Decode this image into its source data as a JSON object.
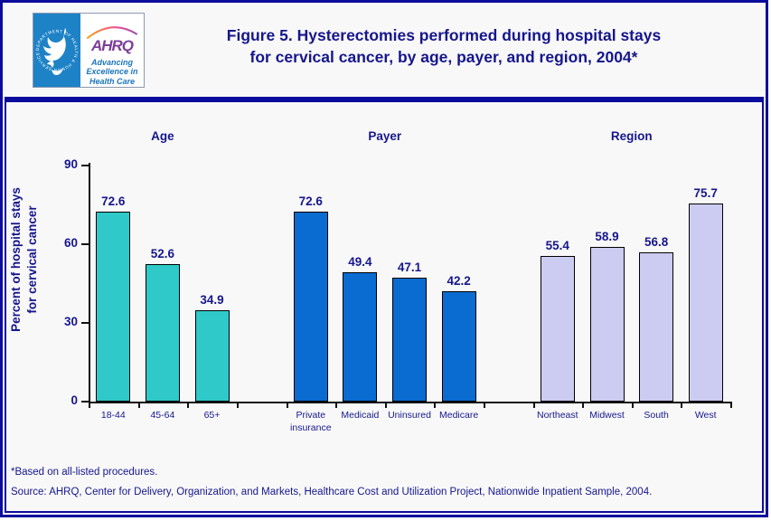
{
  "header": {
    "logo": {
      "seal_text": "DEPARTMENT OF HEALTH & HUMAN SERVICES · USA",
      "ahrq_acronym": "AHRQ",
      "tagline_lines": [
        "Advancing",
        "Excellence in",
        "Health Care"
      ]
    },
    "title_lines": [
      "Figure 5. Hysterectomies performed during hospital stays",
      "for cervical cancer, by age, payer, and region, 2004*"
    ]
  },
  "chart_data": {
    "type": "bar",
    "title": "Figure 5. Hysterectomies performed during hospital stays for cervical cancer, by age, payer, and region, 2004*",
    "ylabel_lines": [
      "Percent of hospital stays",
      "for cervical cancer"
    ],
    "ylim": [
      0,
      90
    ],
    "yticks": [
      0,
      30,
      60,
      90
    ],
    "grid": false,
    "legend": "none",
    "groups": [
      {
        "label": "Age",
        "color": "#2FC9C9",
        "categories": [
          "18-44",
          "45-64",
          "65+"
        ],
        "values": [
          72.6,
          52.6,
          34.9
        ]
      },
      {
        "label": "Payer",
        "color": "#0A6BD0",
        "categories": [
          "Private insurance",
          "Medicaid",
          "Uninsured",
          "Medicare"
        ],
        "values": [
          72.6,
          49.4,
          47.1,
          42.2
        ]
      },
      {
        "label": "Region",
        "color": "#CCCCF2",
        "categories": [
          "Northeast",
          "Midwest",
          "South",
          "West"
        ],
        "values": [
          55.4,
          58.9,
          56.8,
          75.7
        ]
      }
    ]
  },
  "footnotes": [
    "*Based on all-listed procedures.",
    "Source: AHRQ, Center for Delivery, Organization, and Markets, Healthcare Cost and Utilization Project, Nationwide Inpatient Sample, 2004."
  ],
  "colors": {
    "navy_text": "#16168C",
    "border_navy": "#0C0C9C",
    "page_bg": "#F8F8F9",
    "hhs_blue": "#1E82C6",
    "ahrq_purple": "#7D3E98",
    "tagline_blue": "#1B75BC",
    "axis_black": "#111111"
  }
}
